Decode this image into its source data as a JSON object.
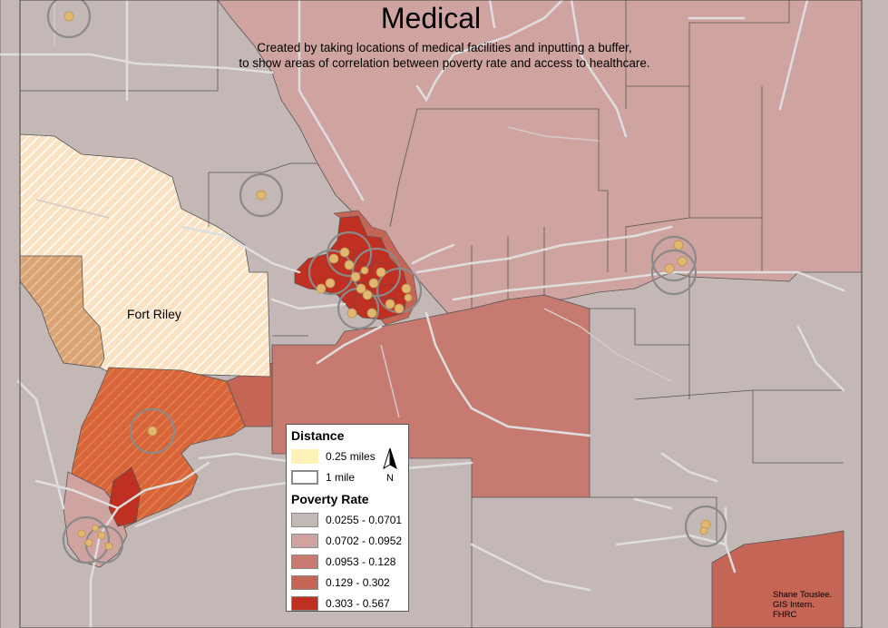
{
  "title": "Medical",
  "subtitle_lines": [
    "Created by taking locations of medical facilities and inputting a buffer,",
    "to show areas of correlation between poverty rate and access to healthcare."
  ],
  "place_label": "Fort Riley",
  "legend": {
    "distance_title": "Distance",
    "distance_items": [
      {
        "label": "0.25 miles",
        "color": "#fdf1b8"
      },
      {
        "label": "1 mile",
        "color": "#ffffff"
      }
    ],
    "north_label": "N",
    "poverty_title": "Poverty Rate",
    "poverty_items": [
      {
        "label": "0.0255 - 0.0701",
        "color": "#c4b8b6"
      },
      {
        "label": "0.0702 - 0.0952",
        "color": "#cfa3a0"
      },
      {
        "label": "0.0953 - 0.128",
        "color": "#c77a70"
      },
      {
        "label": "0.129 - 0.302",
        "color": "#c56556"
      },
      {
        "label": "0.303 - 0.567",
        "color": "#bf2f22"
      }
    ]
  },
  "credit_lines": [
    "Shane Touslee.",
    "GIS Intern.",
    "FHRC"
  ],
  "colors": {
    "boundary": "#555555",
    "road": "#dedede",
    "facility": "#e2b870",
    "buffer_ring": "#8a8a8a",
    "fort_riley_hatch": "#fbe2c2",
    "fort_riley_dark": "#d9a374",
    "hatched_region": "#d8653a"
  },
  "icon": "north-arrow-icon"
}
